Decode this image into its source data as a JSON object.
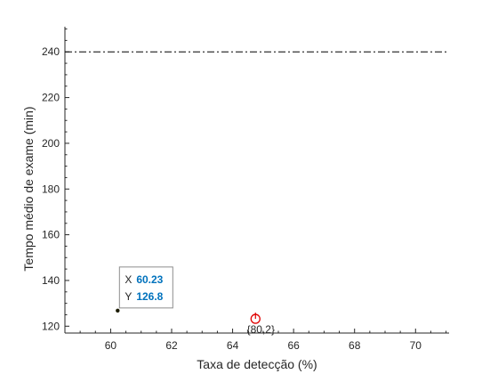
{
  "chart_data": {
    "type": "scatter",
    "title": "",
    "xlabel": "Taxa de detecção (%)",
    "ylabel": "Tempo médio de exame (min)",
    "xlim": [
      58.5,
      71.1
    ],
    "ylim": [
      117,
      251
    ],
    "xticks": [
      60,
      62,
      64,
      66,
      68,
      70
    ],
    "yticks": [
      120,
      140,
      160,
      180,
      200,
      220,
      240
    ],
    "grid": false,
    "box": "left-bottom",
    "reference_line": {
      "y": 240,
      "style": "dash-dot",
      "color": "#000000"
    },
    "points": [
      {
        "x": 60.23,
        "y": 126.8,
        "marker": "dot",
        "color": "#1a1a00"
      }
    ],
    "highlight": {
      "x": 64.75,
      "y": 123.2,
      "marker": "circle-with-stem",
      "color": "#e00000",
      "label": "{80,2}"
    },
    "datatip": {
      "x_key": "X",
      "x_value": "60.23",
      "y_key": "Y",
      "y_value": "126.8"
    }
  }
}
